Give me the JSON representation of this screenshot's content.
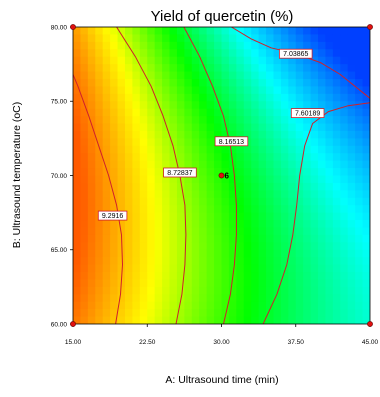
{
  "chart_data": {
    "type": "heatmap",
    "title": "Yield of quercetin (%)",
    "xlabel": "A: Ultrasound time (min)",
    "ylabel": "B: Ultrasound temperature (oC)",
    "xlim": [
      15,
      45
    ],
    "ylim": [
      60,
      80
    ],
    "x_ticks": [
      "15.00",
      "22.50",
      "30.00",
      "37.50",
      "45.00"
    ],
    "y_ticks": [
      "60.00",
      "65.00",
      "70.00",
      "75.00",
      "80.00"
    ],
    "contours": [
      {
        "label": "9.2916",
        "label_at": [
          19.0,
          67.3
        ],
        "points": [
          [
            19.3,
            60
          ],
          [
            19.8,
            62
          ],
          [
            20.0,
            64
          ],
          [
            19.9,
            66
          ],
          [
            19.4,
            68
          ],
          [
            18.6,
            70
          ],
          [
            17.6,
            72
          ],
          [
            16.6,
            74
          ],
          [
            15.5,
            76
          ],
          [
            15.0,
            76.8
          ]
        ]
      },
      {
        "label": "8.72837",
        "label_at": [
          25.8,
          70.2
        ],
        "points": [
          [
            25.4,
            60
          ],
          [
            26.0,
            62
          ],
          [
            26.3,
            64
          ],
          [
            26.4,
            66
          ],
          [
            26.3,
            68
          ],
          [
            25.8,
            70
          ],
          [
            25.1,
            72
          ],
          [
            24.1,
            74
          ],
          [
            22.9,
            76
          ],
          [
            21.3,
            78
          ],
          [
            19.4,
            80
          ]
        ]
      },
      {
        "label": "8.16513",
        "label_at": [
          31.0,
          72.3
        ],
        "points": [
          [
            30.2,
            60
          ],
          [
            30.9,
            62
          ],
          [
            31.3,
            64
          ],
          [
            31.5,
            66
          ],
          [
            31.5,
            68
          ],
          [
            31.3,
            70
          ],
          [
            30.9,
            72
          ],
          [
            30.2,
            74
          ],
          [
            29.1,
            76
          ],
          [
            27.8,
            78
          ],
          [
            26.2,
            80
          ]
        ]
      },
      {
        "label": "7.60189",
        "label_at": [
          38.7,
          74.2
        ],
        "points": [
          [
            34.2,
            60
          ],
          [
            35.6,
            62
          ],
          [
            36.6,
            64
          ],
          [
            37.2,
            66
          ],
          [
            37.6,
            68
          ],
          [
            37.9,
            70
          ],
          [
            38.4,
            72
          ],
          [
            39.2,
            73.5
          ],
          [
            40.8,
            74.3
          ],
          [
            42.8,
            74.7
          ],
          [
            45,
            74.9
          ]
        ]
      },
      {
        "label": "7.03865",
        "label_at": [
          37.5,
          78.2
        ],
        "points": [
          [
            31.0,
            80
          ],
          [
            33.0,
            79.2
          ],
          [
            35.0,
            78.6
          ],
          [
            37.5,
            78.2
          ],
          [
            40.0,
            77.6
          ],
          [
            42.0,
            76.8
          ],
          [
            43.5,
            76.0
          ],
          [
            45,
            75.2
          ]
        ]
      }
    ],
    "design_points": [
      {
        "x": 15,
        "y": 60
      },
      {
        "x": 15,
        "y": 80
      },
      {
        "x": 45,
        "y": 60
      },
      {
        "x": 45,
        "y": 80
      },
      {
        "x": 30,
        "y": 70,
        "label": "6"
      }
    ],
    "color_scale": [
      "#ff5a00",
      "#ffff00",
      "#00ff00",
      "#00ffff",
      "#0040ff"
    ],
    "grid": false,
    "legend": "none"
  }
}
